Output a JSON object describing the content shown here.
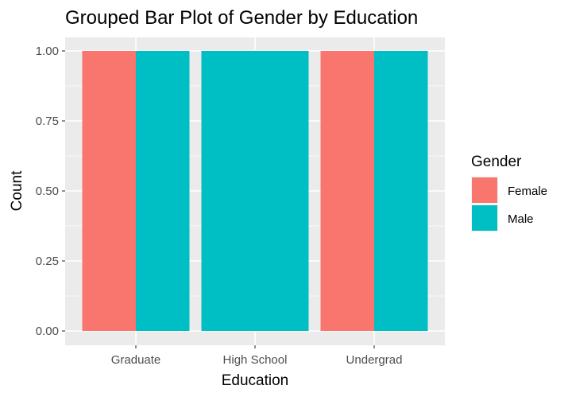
{
  "chart_data": {
    "type": "bar",
    "title": "Grouped Bar Plot of Gender by Education",
    "xlabel": "Education",
    "ylabel": "Count",
    "categories": [
      "Graduate",
      "High School",
      "Undergrad"
    ],
    "series": [
      {
        "name": "Female",
        "color": "#F8766D",
        "values": [
          1,
          0,
          1
        ]
      },
      {
        "name": "Male",
        "color": "#00BFC4",
        "values": [
          1,
          1,
          1
        ]
      }
    ],
    "ylim": [
      0,
      1.05
    ],
    "yticks": [
      0,
      0.25,
      0.5,
      0.75,
      1
    ],
    "ytick_labels": [
      "0.00",
      "0.25",
      "0.50",
      "0.75",
      "1.00"
    ],
    "grid": true,
    "panel_background": "#EBEBEB",
    "legend": {
      "title": "Gender",
      "position": "right"
    }
  }
}
